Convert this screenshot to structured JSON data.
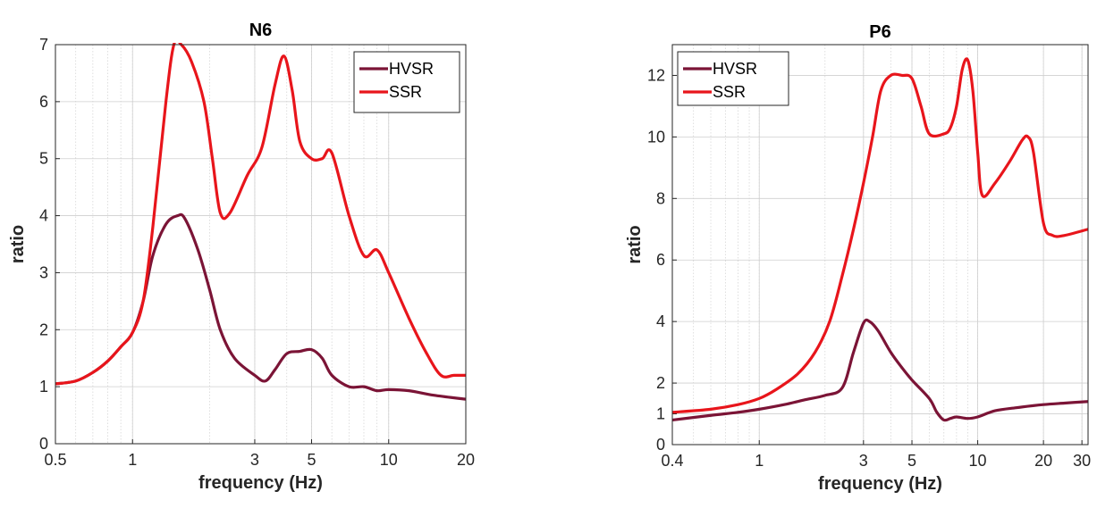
{
  "chart_data": [
    {
      "type": "line",
      "title": "N6",
      "xlabel": "frequency (Hz)",
      "ylabel": "ratio",
      "xscale": "log",
      "xlim": [
        0.5,
        20
      ],
      "ylim": [
        0,
        7
      ],
      "xticks": [
        0.5,
        1,
        3,
        5,
        10,
        20
      ],
      "xticklabels": [
        "0.5",
        "1",
        "3",
        "5",
        "10",
        "20"
      ],
      "yticks": [
        0,
        1,
        2,
        3,
        4,
        5,
        6,
        7
      ],
      "yticklabels": [
        "0",
        "1",
        "2",
        "3",
        "4",
        "5",
        "6",
        "7"
      ],
      "grid": true,
      "legend_position": "top-right",
      "series": [
        {
          "name": "HVSR",
          "color": "#7b1436",
          "x": [
            0.5,
            0.6,
            0.7,
            0.8,
            0.9,
            1.0,
            1.1,
            1.2,
            1.35,
            1.5,
            1.6,
            1.8,
            2.0,
            2.2,
            2.5,
            3.0,
            3.3,
            3.6,
            4.0,
            4.5,
            5.0,
            5.5,
            6.0,
            7.0,
            8.0,
            9.0,
            10.0,
            12.0,
            15.0,
            20.0
          ],
          "y": [
            1.05,
            1.1,
            1.25,
            1.45,
            1.7,
            1.95,
            2.5,
            3.3,
            3.85,
            4.0,
            3.95,
            3.4,
            2.7,
            2.0,
            1.5,
            1.2,
            1.1,
            1.3,
            1.58,
            1.62,
            1.65,
            1.5,
            1.2,
            1.0,
            1.0,
            0.93,
            0.95,
            0.93,
            0.85,
            0.78
          ]
        },
        {
          "name": "SSR",
          "color": "#e8151b",
          "x": [
            0.5,
            0.6,
            0.7,
            0.8,
            0.9,
            1.0,
            1.1,
            1.2,
            1.35,
            1.45,
            1.55,
            1.7,
            1.9,
            2.05,
            2.2,
            2.4,
            2.8,
            3.2,
            3.6,
            3.9,
            4.2,
            4.5,
            5.0,
            5.5,
            6.0,
            7.0,
            8.0,
            9.0,
            10.0,
            12.0,
            14.0,
            16.0,
            18.0,
            20.0
          ],
          "y": [
            1.05,
            1.1,
            1.25,
            1.45,
            1.7,
            1.95,
            2.5,
            3.8,
            6.0,
            7.0,
            7.0,
            6.7,
            6.0,
            5.0,
            4.05,
            4.05,
            4.7,
            5.2,
            6.3,
            6.8,
            6.2,
            5.3,
            5.0,
            5.0,
            5.1,
            4.0,
            3.3,
            3.4,
            3.0,
            2.2,
            1.6,
            1.2,
            1.2,
            1.2
          ]
        }
      ]
    },
    {
      "type": "line",
      "title": "P6",
      "xlabel": "frequency (Hz)",
      "ylabel": "ratio",
      "xscale": "log",
      "xlim": [
        0.4,
        32
      ],
      "ylim": [
        0,
        13
      ],
      "xticks": [
        0.4,
        1,
        3,
        5,
        10,
        20,
        30
      ],
      "xticklabels": [
        "0.4",
        "1",
        "3",
        "5",
        "10",
        "20",
        "30"
      ],
      "yticks": [
        0,
        1,
        2,
        4,
        6,
        8,
        10,
        12
      ],
      "yticklabels": [
        "0",
        "1",
        "2",
        "4",
        "6",
        "8",
        "10",
        "12"
      ],
      "grid": true,
      "legend_position": "top-left",
      "series": [
        {
          "name": "HVSR",
          "color": "#7b1436",
          "x": [
            0.4,
            0.6,
            0.8,
            1.0,
            1.3,
            1.6,
            2.0,
            2.4,
            2.7,
            3.0,
            3.2,
            3.5,
            4.0,
            4.5,
            5.0,
            6.0,
            6.5,
            7.0,
            7.5,
            8.0,
            9.0,
            10.0,
            12.0,
            15.0,
            20.0,
            25.0,
            32.0
          ],
          "y": [
            0.8,
            0.95,
            1.05,
            1.15,
            1.3,
            1.45,
            1.6,
            1.85,
            3.0,
            3.95,
            4.0,
            3.7,
            3.0,
            2.5,
            2.1,
            1.5,
            1.05,
            0.8,
            0.85,
            0.9,
            0.85,
            0.9,
            1.1,
            1.2,
            1.3,
            1.35,
            1.4
          ]
        },
        {
          "name": "SSR",
          "color": "#e8151b",
          "x": [
            0.4,
            0.6,
            0.8,
            1.0,
            1.2,
            1.5,
            1.8,
            2.1,
            2.4,
            2.7,
            3.0,
            3.3,
            3.6,
            4.0,
            4.5,
            5.0,
            5.5,
            6.0,
            7.0,
            7.5,
            8.0,
            8.5,
            9.0,
            9.5,
            10.0,
            10.5,
            12.0,
            14.0,
            16.0,
            17.0,
            18.0,
            20.0,
            22.0,
            25.0,
            32.0
          ],
          "y": [
            1.05,
            1.15,
            1.3,
            1.5,
            1.8,
            2.3,
            3.0,
            4.0,
            5.5,
            7.0,
            8.5,
            10.0,
            11.5,
            12.0,
            12.0,
            11.9,
            11.0,
            10.1,
            10.1,
            10.3,
            11.0,
            12.2,
            12.5,
            11.5,
            9.5,
            8.1,
            8.5,
            9.2,
            9.9,
            10.0,
            9.5,
            7.2,
            6.8,
            6.8,
            7.0
          ]
        }
      ]
    }
  ]
}
